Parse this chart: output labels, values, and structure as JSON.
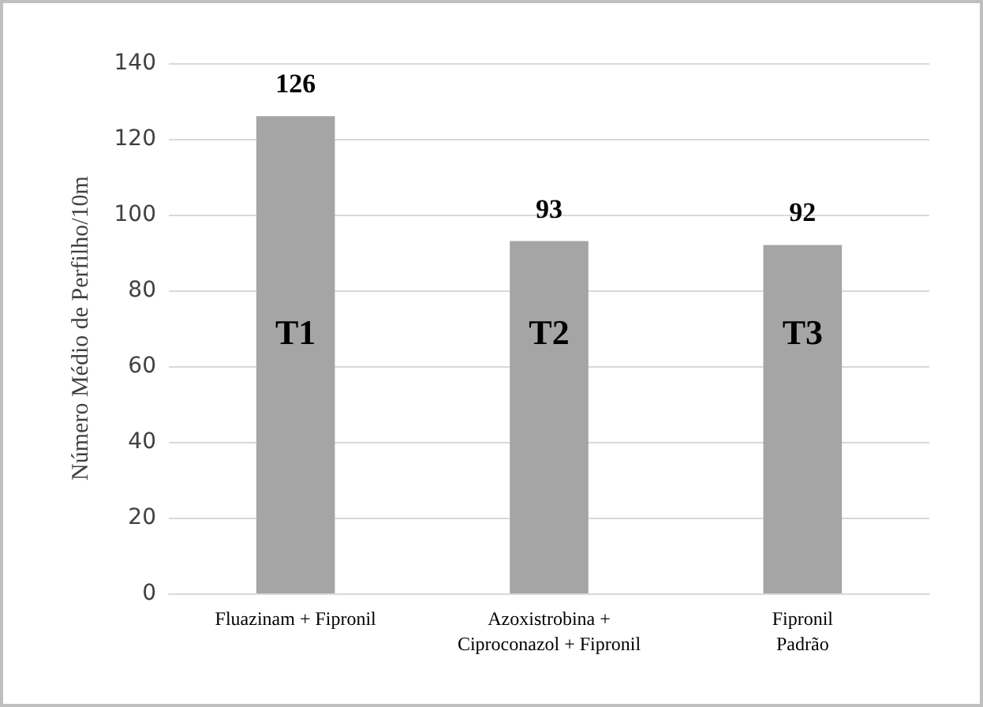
{
  "chart_data": {
    "type": "bar",
    "ylabel": "Número Médio de Perfilho/10m",
    "categories": [
      "Fluazinam + Fipronil",
      "Azoxistrobina +\nCiproconazol + Fipronil",
      "Fipronil\nPadrão"
    ],
    "values": [
      126,
      93,
      92
    ],
    "color": "#a5a5a5",
    "data_labels": true,
    "ylim": [
      0,
      140
    ],
    "yticks": [
      0,
      20,
      40,
      60,
      80,
      100,
      120,
      140
    ],
    "grid": "y",
    "annotations": [
      "T1",
      "T2",
      "T3"
    ]
  }
}
